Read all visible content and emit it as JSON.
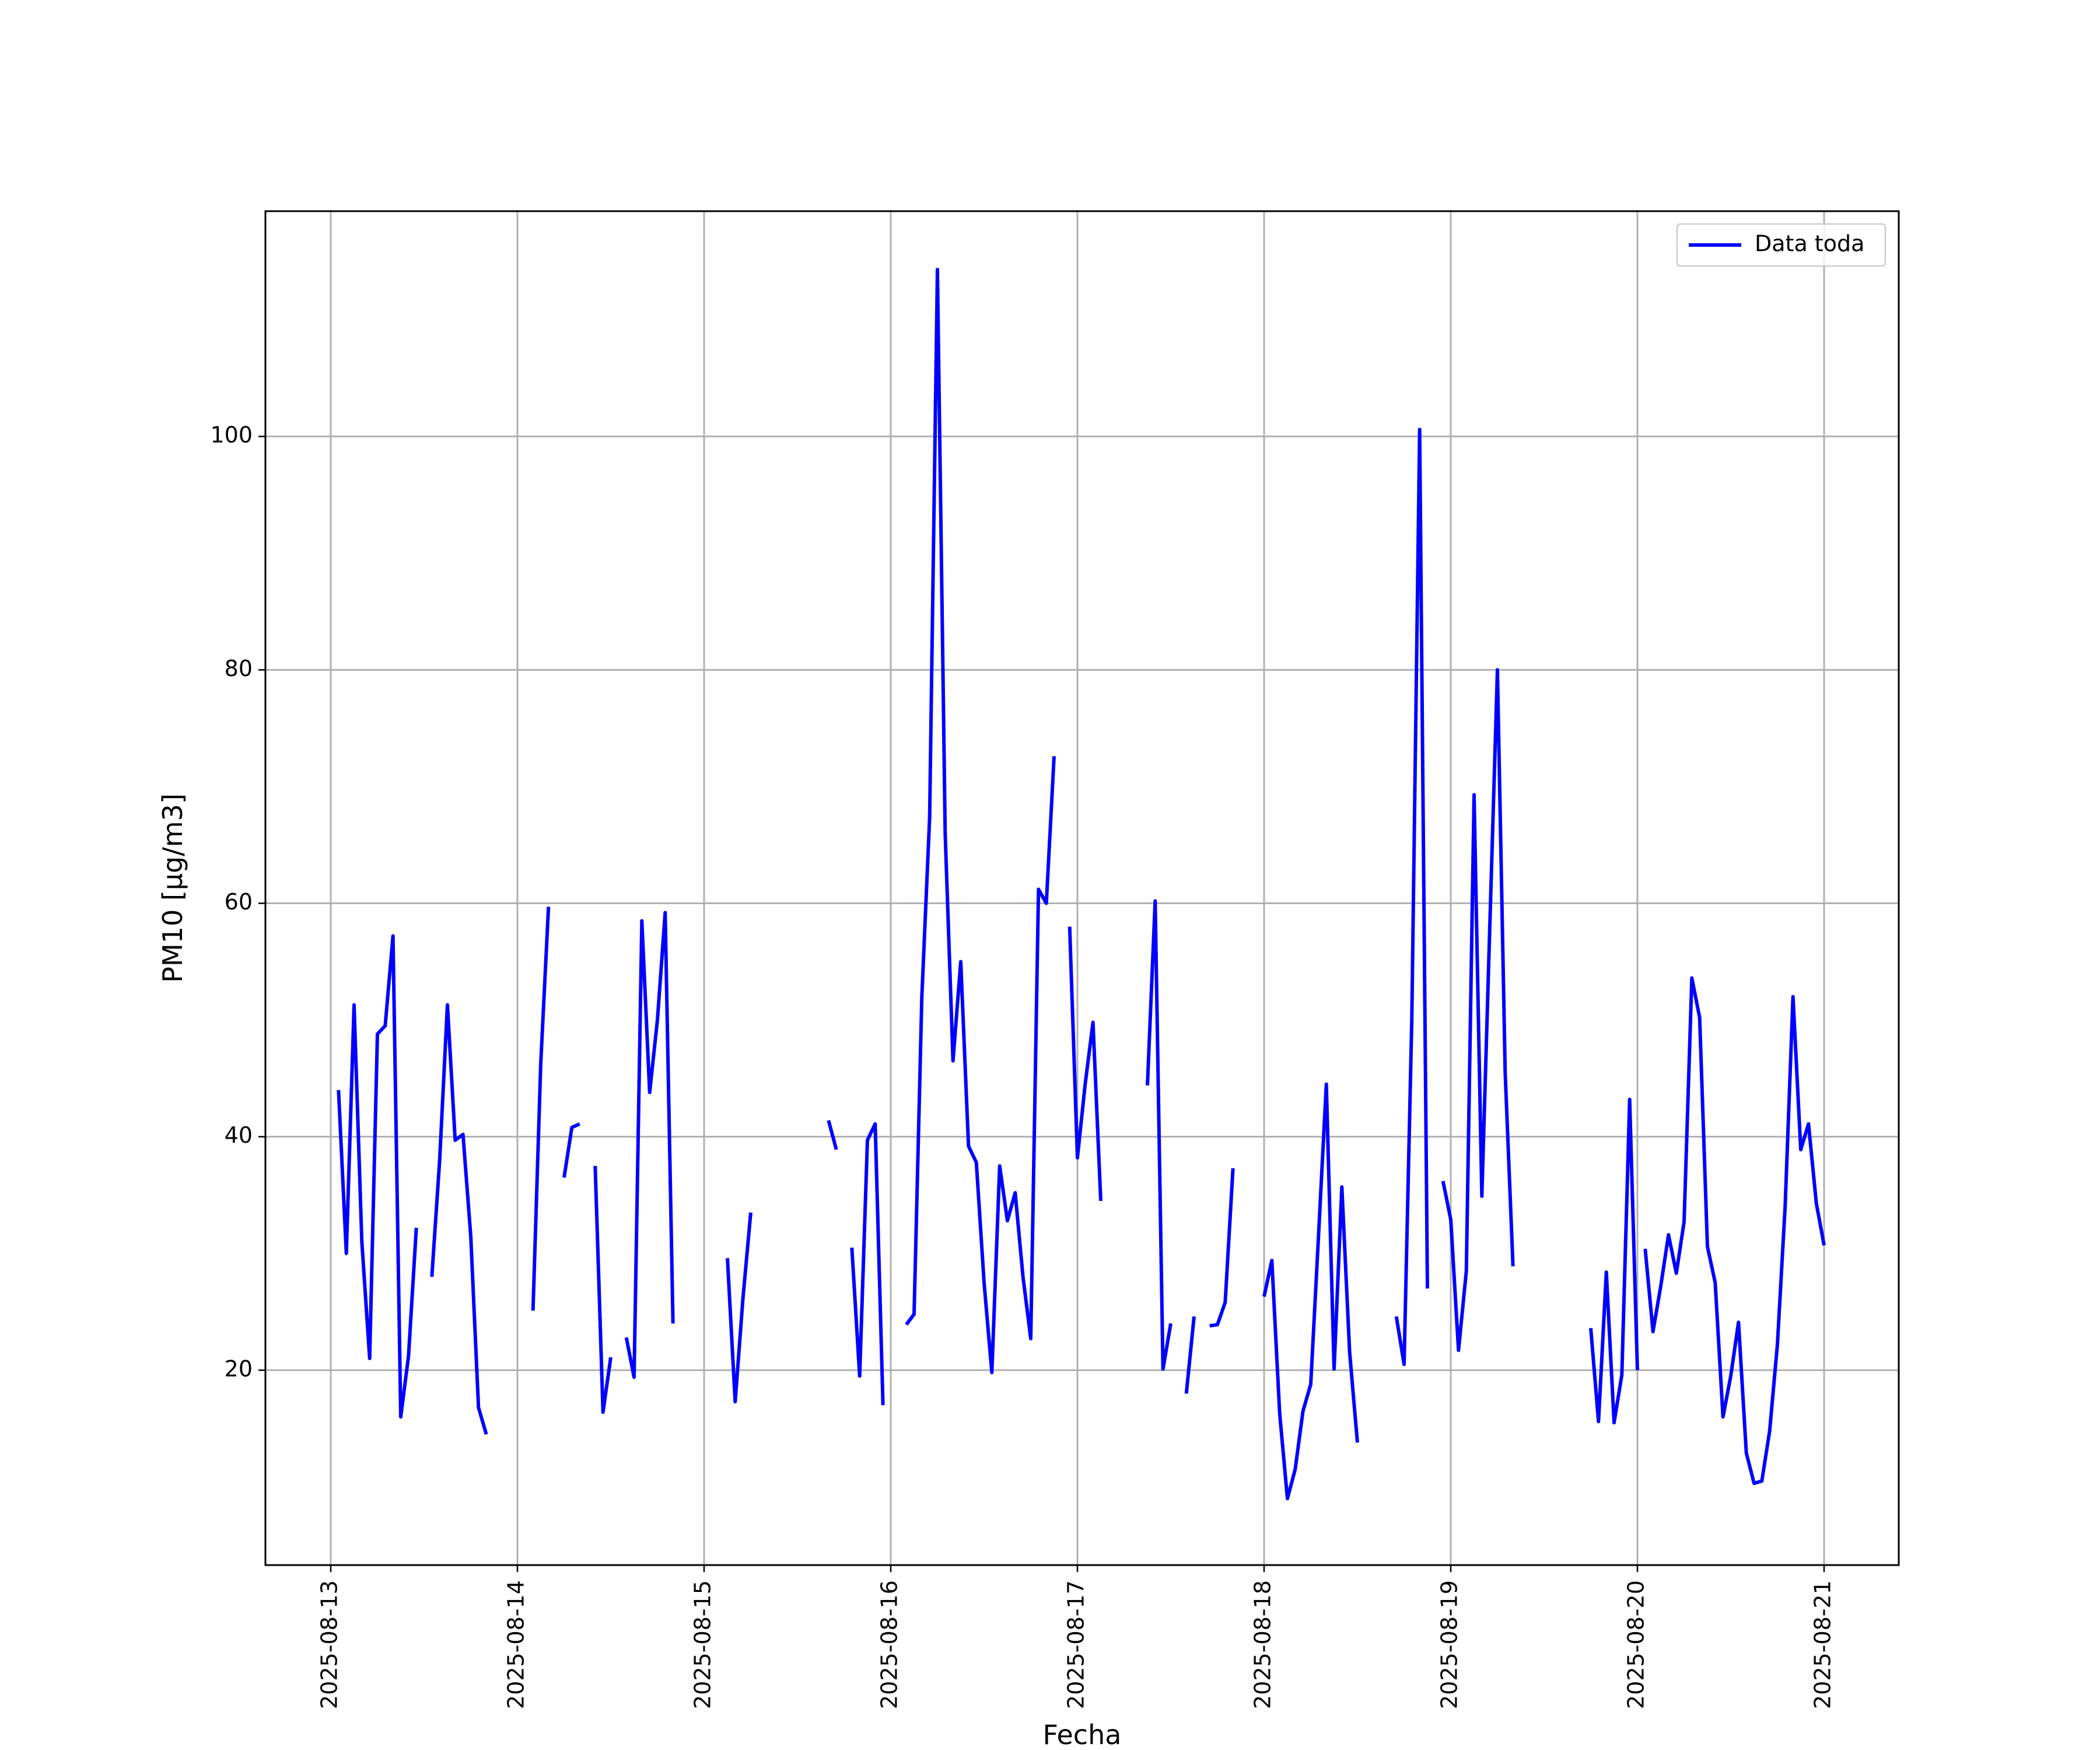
{
  "chart_data": {
    "type": "line",
    "xlabel": "Fecha",
    "ylabel": "PM10 [μg/m3]",
    "xlim": [
      "2025-08-12 15:36",
      "2025-08-21 09:36"
    ],
    "ylim": [
      3.3,
      119.3
    ],
    "x_ticks": [
      "2025-08-13",
      "2025-08-14",
      "2025-08-15",
      "2025-08-16",
      "2025-08-17",
      "2025-08-18",
      "2025-08-19",
      "2025-08-20",
      "2025-08-21"
    ],
    "y_ticks": [
      20,
      40,
      60,
      80,
      100
    ],
    "grid": true,
    "legend": {
      "position": "top-right"
    },
    "series": [
      {
        "name": "Data toda",
        "color": "#0000ff",
        "segments": [
          [
            [
              "2025-08-13 01:00",
              44
            ],
            [
              "2025-08-13 02:00",
              30
            ],
            [
              "2025-08-13 03:00",
              51.3
            ],
            [
              "2025-08-13 04:00",
              31
            ],
            [
              "2025-08-13 05:00",
              21
            ],
            [
              "2025-08-13 06:00",
              48.8
            ],
            [
              "2025-08-13 07:00",
              49.5
            ],
            [
              "2025-08-13 08:00",
              57.2
            ],
            [
              "2025-08-13 09:00",
              16
            ],
            [
              "2025-08-13 10:00",
              21.2
            ],
            [
              "2025-08-13 11:00",
              32.2
            ]
          ],
          [
            [
              "2025-08-13 13:00",
              28
            ],
            [
              "2025-08-13 14:00",
              38
            ],
            [
              "2025-08-13 15:00",
              51.3
            ],
            [
              "2025-08-13 16:00",
              39.7
            ],
            [
              "2025-08-13 17:00",
              40.2
            ],
            [
              "2025-08-13 18:00",
              31.5
            ],
            [
              "2025-08-13 19:00",
              16.8
            ],
            [
              "2025-08-13 20:00",
              14.5
            ]
          ],
          [
            [
              "2025-08-14 02:00",
              25.1
            ],
            [
              "2025-08-14 03:00",
              46.3
            ],
            [
              "2025-08-14 04:00",
              59.7
            ]
          ],
          [
            [
              "2025-08-14 06:00",
              36.5
            ],
            [
              "2025-08-14 07:00",
              40.8
            ],
            [
              "2025-08-14 08:00",
              41.1
            ]
          ],
          [
            [
              "2025-08-14 10:00",
              37.5
            ],
            [
              "2025-08-14 11:00",
              16.4
            ],
            [
              "2025-08-14 12:00",
              21.1
            ]
          ],
          [
            [
              "2025-08-14 14:00",
              22.8
            ],
            [
              "2025-08-14 15:00",
              19.4
            ],
            [
              "2025-08-14 16:00",
              58.5
            ],
            [
              "2025-08-14 17:00",
              43.8
            ],
            [
              "2025-08-14 18:00",
              50
            ],
            [
              "2025-08-14 19:00",
              59.2
            ],
            [
              "2025-08-14 20:00",
              24
            ]
          ],
          [
            [
              "2025-08-15 03:00",
              29.6
            ],
            [
              "2025-08-15 04:00",
              17.3
            ],
            [
              "2025-08-15 05:00",
              26.2
            ],
            [
              "2025-08-15 06:00",
              33.5
            ]
          ],
          [
            [
              "2025-08-15 16:00",
              41.4
            ],
            [
              "2025-08-15 17:00",
              38.9
            ]
          ],
          [
            [
              "2025-08-15 19:00",
              30.5
            ],
            [
              "2025-08-15 20:00",
              19.5
            ],
            [
              "2025-08-15 21:00",
              39.7
            ],
            [
              "2025-08-15 22:00",
              41.1
            ],
            [
              "2025-08-15 23:00",
              17
            ]
          ],
          [
            [
              "2025-08-16 02:00",
              23.9
            ],
            [
              "2025-08-16 03:00",
              24.8
            ],
            [
              "2025-08-16 04:00",
              52
            ],
            [
              "2025-08-16 05:00",
              67.4
            ],
            [
              "2025-08-16 06:00",
              114.3
            ],
            [
              "2025-08-16 07:00",
              66
            ],
            [
              "2025-08-16 08:00",
              46.5
            ],
            [
              "2025-08-16 09:00",
              55
            ],
            [
              "2025-08-16 10:00",
              39.2
            ],
            [
              "2025-08-16 11:00",
              37.8
            ],
            [
              "2025-08-16 12:00",
              27.5
            ],
            [
              "2025-08-16 13:00",
              19.8
            ],
            [
              "2025-08-16 14:00",
              37.5
            ],
            [
              "2025-08-16 15:00",
              32.8
            ],
            [
              "2025-08-16 16:00",
              35.2
            ],
            [
              "2025-08-16 17:00",
              28
            ],
            [
              "2025-08-16 18:00",
              22.7
            ],
            [
              "2025-08-16 19:00",
              61.2
            ],
            [
              "2025-08-16 20:00",
              60
            ],
            [
              "2025-08-16 21:00",
              72.6
            ]
          ],
          [
            [
              "2025-08-16 23:00",
              58
            ],
            [
              "2025-08-17 00:00",
              38.2
            ],
            [
              "2025-08-17 01:00",
              44.5
            ],
            [
              "2025-08-17 02:00",
              49.8
            ],
            [
              "2025-08-17 03:00",
              34.5
            ]
          ],
          [
            [
              "2025-08-17 09:00",
              44.4
            ],
            [
              "2025-08-17 10:00",
              60.2
            ],
            [
              "2025-08-17 11:00",
              20.1
            ],
            [
              "2025-08-17 12:00",
              24
            ]
          ],
          [
            [
              "2025-08-17 14:00",
              18
            ],
            [
              "2025-08-17 15:00",
              24.6
            ]
          ],
          [
            [
              "2025-08-17 17:00",
              23.8
            ],
            [
              "2025-08-17 18:00",
              23.9
            ],
            [
              "2025-08-17 19:00",
              25.8
            ],
            [
              "2025-08-17 20:00",
              37.3
            ]
          ],
          [
            [
              "2025-08-18 00:00",
              26.3
            ],
            [
              "2025-08-18 01:00",
              29.4
            ],
            [
              "2025-08-18 02:00",
              16.3
            ],
            [
              "2025-08-18 03:00",
              9
            ],
            [
              "2025-08-18 04:00",
              11.5
            ],
            [
              "2025-08-18 05:00",
              16.5
            ],
            [
              "2025-08-18 06:00",
              18.8
            ],
            [
              "2025-08-18 07:00",
              31.5
            ],
            [
              "2025-08-18 08:00",
              44.5
            ],
            [
              "2025-08-18 09:00",
              20.1
            ],
            [
              "2025-08-18 10:00",
              35.7
            ],
            [
              "2025-08-18 11:00",
              21.5
            ],
            [
              "2025-08-18 12:00",
              13.8
            ]
          ],
          [
            [
              "2025-08-18 17:00",
              24.6
            ],
            [
              "2025-08-18 18:00",
              20.5
            ],
            [
              "2025-08-18 19:00",
              50.2
            ],
            [
              "2025-08-18 20:00",
              100.6
            ],
            [
              "2025-08-18 21:00",
              27
            ]
          ],
          [
            [
              "2025-08-18 23:00",
              36.2
            ],
            [
              "2025-08-19 00:00",
              32.9
            ],
            [
              "2025-08-19 01:00",
              21.7
            ],
            [
              "2025-08-19 02:00",
              28.5
            ],
            [
              "2025-08-19 03:00",
              69.3
            ],
            [
              "2025-08-19 04:00",
              34.9
            ],
            [
              "2025-08-19 05:00",
              57.6
            ],
            [
              "2025-08-19 06:00",
              80
            ],
            [
              "2025-08-19 07:00",
              45.5
            ],
            [
              "2025-08-19 08:00",
              28.9
            ]
          ],
          [
            [
              "2025-08-19 18:00",
              23.6
            ],
            [
              "2025-08-19 19:00",
              15.6
            ],
            [
              "2025-08-19 20:00",
              28.4
            ],
            [
              "2025-08-19 21:00",
              15.5
            ],
            [
              "2025-08-19 22:00",
              19.6
            ],
            [
              "2025-08-19 23:00",
              43.2
            ],
            [
              "2025-08-20 00:00",
              20
            ]
          ],
          [
            [
              "2025-08-20 01:00",
              30.4
            ],
            [
              "2025-08-20 02:00",
              23.3
            ],
            [
              "2025-08-20 03:00",
              27.2
            ],
            [
              "2025-08-20 04:00",
              31.6
            ],
            [
              "2025-08-20 05:00",
              28.3
            ],
            [
              "2025-08-20 06:00",
              32.7
            ],
            [
              "2025-08-20 07:00",
              53.6
            ],
            [
              "2025-08-20 08:00",
              50.2
            ],
            [
              "2025-08-20 09:00",
              30.6
            ],
            [
              "2025-08-20 10:00",
              27.5
            ],
            [
              "2025-08-20 11:00",
              16
            ],
            [
              "2025-08-20 12:00",
              19.5
            ],
            [
              "2025-08-20 13:00",
              24.1
            ],
            [
              "2025-08-20 14:00",
              12.9
            ],
            [
              "2025-08-20 15:00",
              10.3
            ],
            [
              "2025-08-20 16:00",
              10.5
            ],
            [
              "2025-08-20 17:00",
              14.8
            ],
            [
              "2025-08-20 18:00",
              22.2
            ],
            [
              "2025-08-20 19:00",
              34.1
            ],
            [
              "2025-08-20 20:00",
              52
            ],
            [
              "2025-08-20 21:00",
              38.9
            ],
            [
              "2025-08-20 22:00",
              41.1
            ],
            [
              "2025-08-20 23:00",
              34.3
            ],
            [
              "2025-08-21 00:00",
              30.7
            ]
          ]
        ]
      }
    ]
  }
}
